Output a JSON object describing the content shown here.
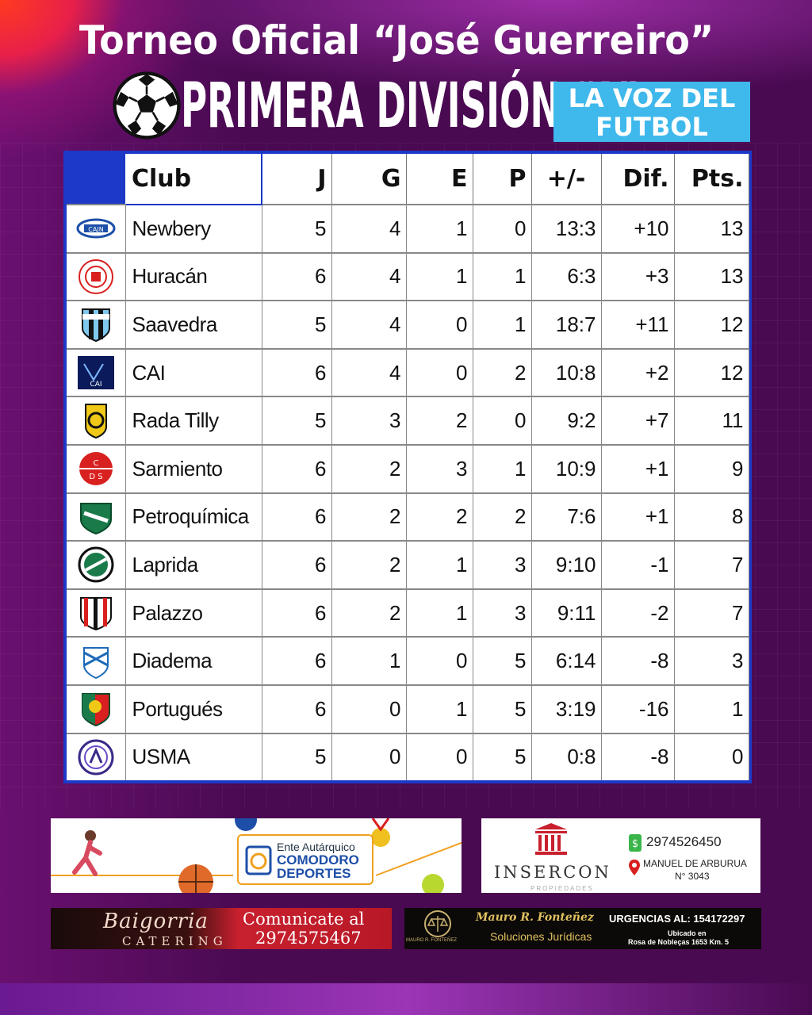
{
  "header": {
    "title": "Torneo Oficial “José Guerreiro”",
    "division": "PRIMERA DIVISIÓN “A”",
    "brand_line1": "LA VOZ DEL",
    "brand_line2": "FUTBOL"
  },
  "table": {
    "columns": [
      "Club",
      "J",
      "G",
      "E",
      "P",
      "+/-",
      "Dif.",
      "Pts."
    ],
    "rows": [
      {
        "club": "Newbery",
        "j": "5",
        "g": "4",
        "e": "1",
        "p": "0",
        "goals": "13:3",
        "dif": "+10",
        "pts": "13",
        "crest": "newbery-crest"
      },
      {
        "club": "Huracán",
        "j": "6",
        "g": "4",
        "e": "1",
        "p": "1",
        "goals": "6:3",
        "dif": "+3",
        "pts": "13",
        "crest": "huracan-crest"
      },
      {
        "club": "Saavedra",
        "j": "5",
        "g": "4",
        "e": "0",
        "p": "1",
        "goals": "18:7",
        "dif": "+11",
        "pts": "12",
        "crest": "saavedra-crest"
      },
      {
        "club": "CAI",
        "j": "6",
        "g": "4",
        "e": "0",
        "p": "2",
        "goals": "10:8",
        "dif": "+2",
        "pts": "12",
        "crest": "cai-crest"
      },
      {
        "club": "Rada Tilly",
        "j": "5",
        "g": "3",
        "e": "2",
        "p": "0",
        "goals": "9:2",
        "dif": "+7",
        "pts": "11",
        "crest": "rada-tilly-crest"
      },
      {
        "club": "Sarmiento",
        "j": "6",
        "g": "2",
        "e": "3",
        "p": "1",
        "goals": "10:9",
        "dif": "+1",
        "pts": "9",
        "crest": "sarmiento-crest"
      },
      {
        "club": "Petroquímica",
        "j": "6",
        "g": "2",
        "e": "2",
        "p": "2",
        "goals": "7:6",
        "dif": "+1",
        "pts": "8",
        "crest": "petroquimica-crest"
      },
      {
        "club": "Laprida",
        "j": "6",
        "g": "2",
        "e": "1",
        "p": "3",
        "goals": "9:10",
        "dif": "-1",
        "pts": "7",
        "crest": "laprida-crest"
      },
      {
        "club": "Palazzo",
        "j": "6",
        "g": "2",
        "e": "1",
        "p": "3",
        "goals": "9:11",
        "dif": "-2",
        "pts": "7",
        "crest": "palazzo-crest"
      },
      {
        "club": "Diadema",
        "j": "6",
        "g": "1",
        "e": "0",
        "p": "5",
        "goals": "6:14",
        "dif": "-8",
        "pts": "3",
        "crest": "diadema-crest"
      },
      {
        "club": "Portugués",
        "j": "6",
        "g": "0",
        "e": "1",
        "p": "5",
        "goals": "3:19",
        "dif": "-16",
        "pts": "1",
        "crest": "portugues-crest"
      },
      {
        "club": "USMA",
        "j": "5",
        "g": "0",
        "e": "0",
        "p": "5",
        "goals": "0:8",
        "dif": "-8",
        "pts": "0",
        "crest": "usma-crest"
      }
    ]
  },
  "sponsors": {
    "deportes": {
      "line1": "Ente Autárquico",
      "line2": "COMODORO",
      "line3": "DEPORTES"
    },
    "insercon": {
      "name": "INSERCON",
      "sub": "PROPIEDADES",
      "phone": "2974526450",
      "address1": "MANUEL DE ARBURUA",
      "address2": "N° 3043"
    },
    "baigorria": {
      "name": "Baigorria",
      "sub": "CATERING",
      "cta1": "Comunicate al",
      "cta2": "2974575467"
    },
    "mauro": {
      "name": "Mauro R. Fonteñez",
      "sub": "Soluciones Jurídicas",
      "urgencias": "URGENCIAS AL: 154172297",
      "ubicado": "Ubicado en",
      "address": "Rosa de Nobleças 1653 Km. 5",
      "logo_text": "MAURO R. FONTEÑEZ"
    }
  },
  "colors": {
    "background": "#4a0a52",
    "table_border": "#1c39c8",
    "brand_badge": "#3fb8ec"
  }
}
